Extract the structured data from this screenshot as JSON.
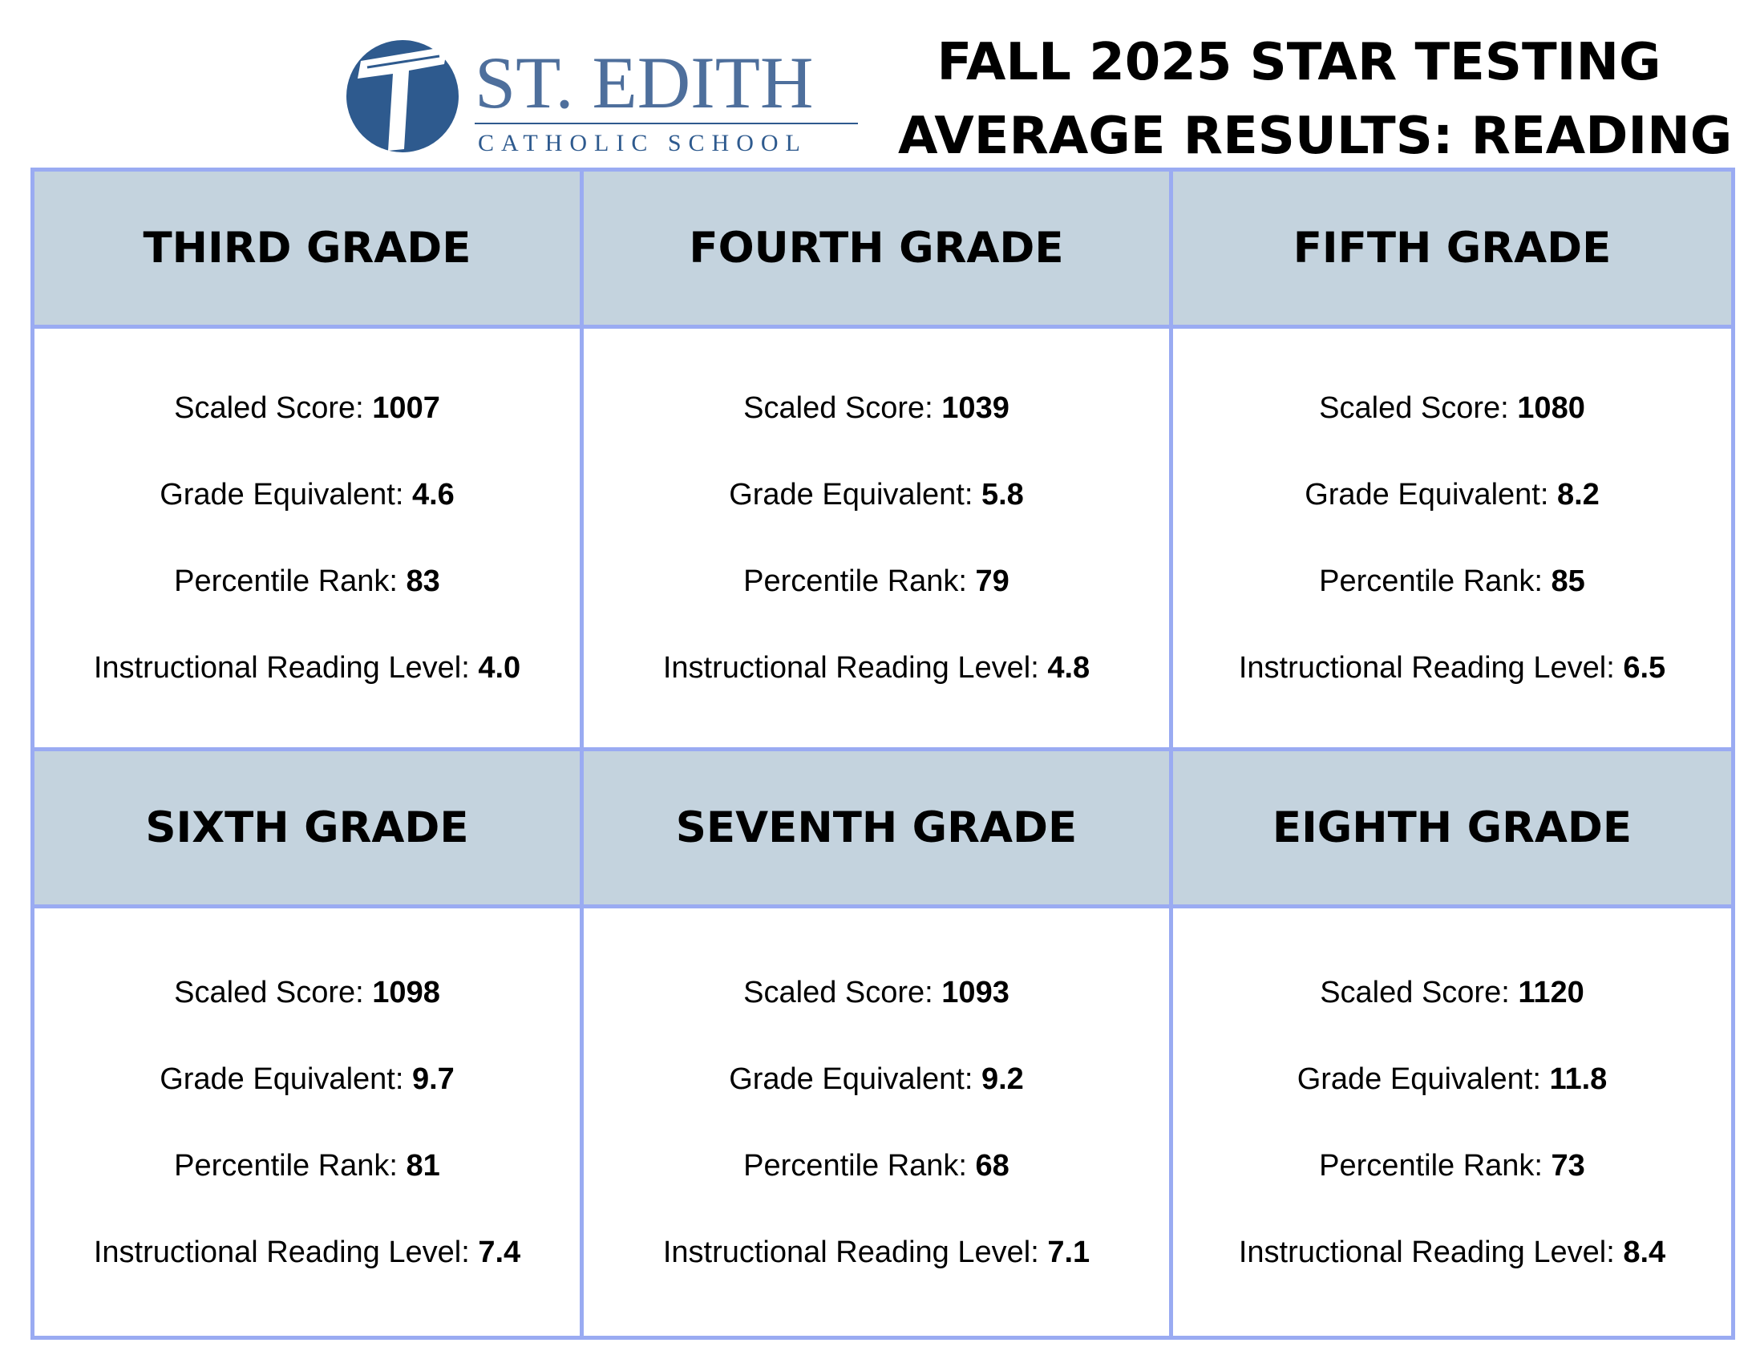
{
  "logo": {
    "name": "ST. EDITH",
    "subtitle": "CATHOLIC SCHOOL",
    "colors": {
      "primary": "#2e5a8e",
      "light": "#6f90bd"
    }
  },
  "title": {
    "line1": "FALL 2025 STAR TESTING",
    "line2": "AVERAGE RESULTS: READING"
  },
  "colors": {
    "header_bg": "#c4d3de",
    "border": "#9aabf2"
  },
  "grades": [
    {
      "name": "THIRD GRADE",
      "scaled_label": "Scaled Score: ",
      "scaled": "1007",
      "ge_label": "Grade Equivalent: ",
      "ge": "4.6",
      "pr_label": "Percentile Rank: ",
      "pr": "83",
      "irl_label": "Instructional Reading Level: ",
      "irl": "4.0"
    },
    {
      "name": "FOURTH GRADE",
      "scaled_label": "Scaled Score: ",
      "scaled": "1039",
      "ge_label": "Grade Equivalent: ",
      "ge": "5.8",
      "pr_label": "Percentile Rank: ",
      "pr": "79",
      "irl_label": "Instructional Reading Level: ",
      "irl": "4.8"
    },
    {
      "name": "FIFTH GRADE",
      "scaled_label": "Scaled Score: ",
      "scaled": "1080",
      "ge_label": "Grade Equivalent: ",
      "ge": "8.2",
      "pr_label": "Percentile Rank: ",
      "pr": "85",
      "irl_label": "Instructional Reading Level: ",
      "irl": "6.5"
    },
    {
      "name": "SIXTH GRADE",
      "scaled_label": "Scaled Score: ",
      "scaled": "1098",
      "ge_label": "Grade Equivalent: ",
      "ge": "9.7",
      "pr_label": "Percentile Rank: ",
      "pr": "81",
      "irl_label": "Instructional Reading Level: ",
      "irl": "7.4"
    },
    {
      "name": "SEVENTH GRADE",
      "scaled_label": "Scaled Score: ",
      "scaled": "1093",
      "ge_label": "Grade Equivalent: ",
      "ge": "9.2",
      "pr_label": "Percentile Rank: ",
      "pr": "68",
      "irl_label": "Instructional Reading Level: ",
      "irl": "7.1"
    },
    {
      "name": "EIGHTH GRADE",
      "scaled_label": "Scaled Score: ",
      "scaled": "1120",
      "ge_label": "Grade Equivalent: ",
      "ge": "11.8",
      "pr_label": "Percentile Rank: ",
      "pr": "73",
      "irl_label": "Instructional Reading Level: ",
      "irl": "8.4"
    }
  ]
}
